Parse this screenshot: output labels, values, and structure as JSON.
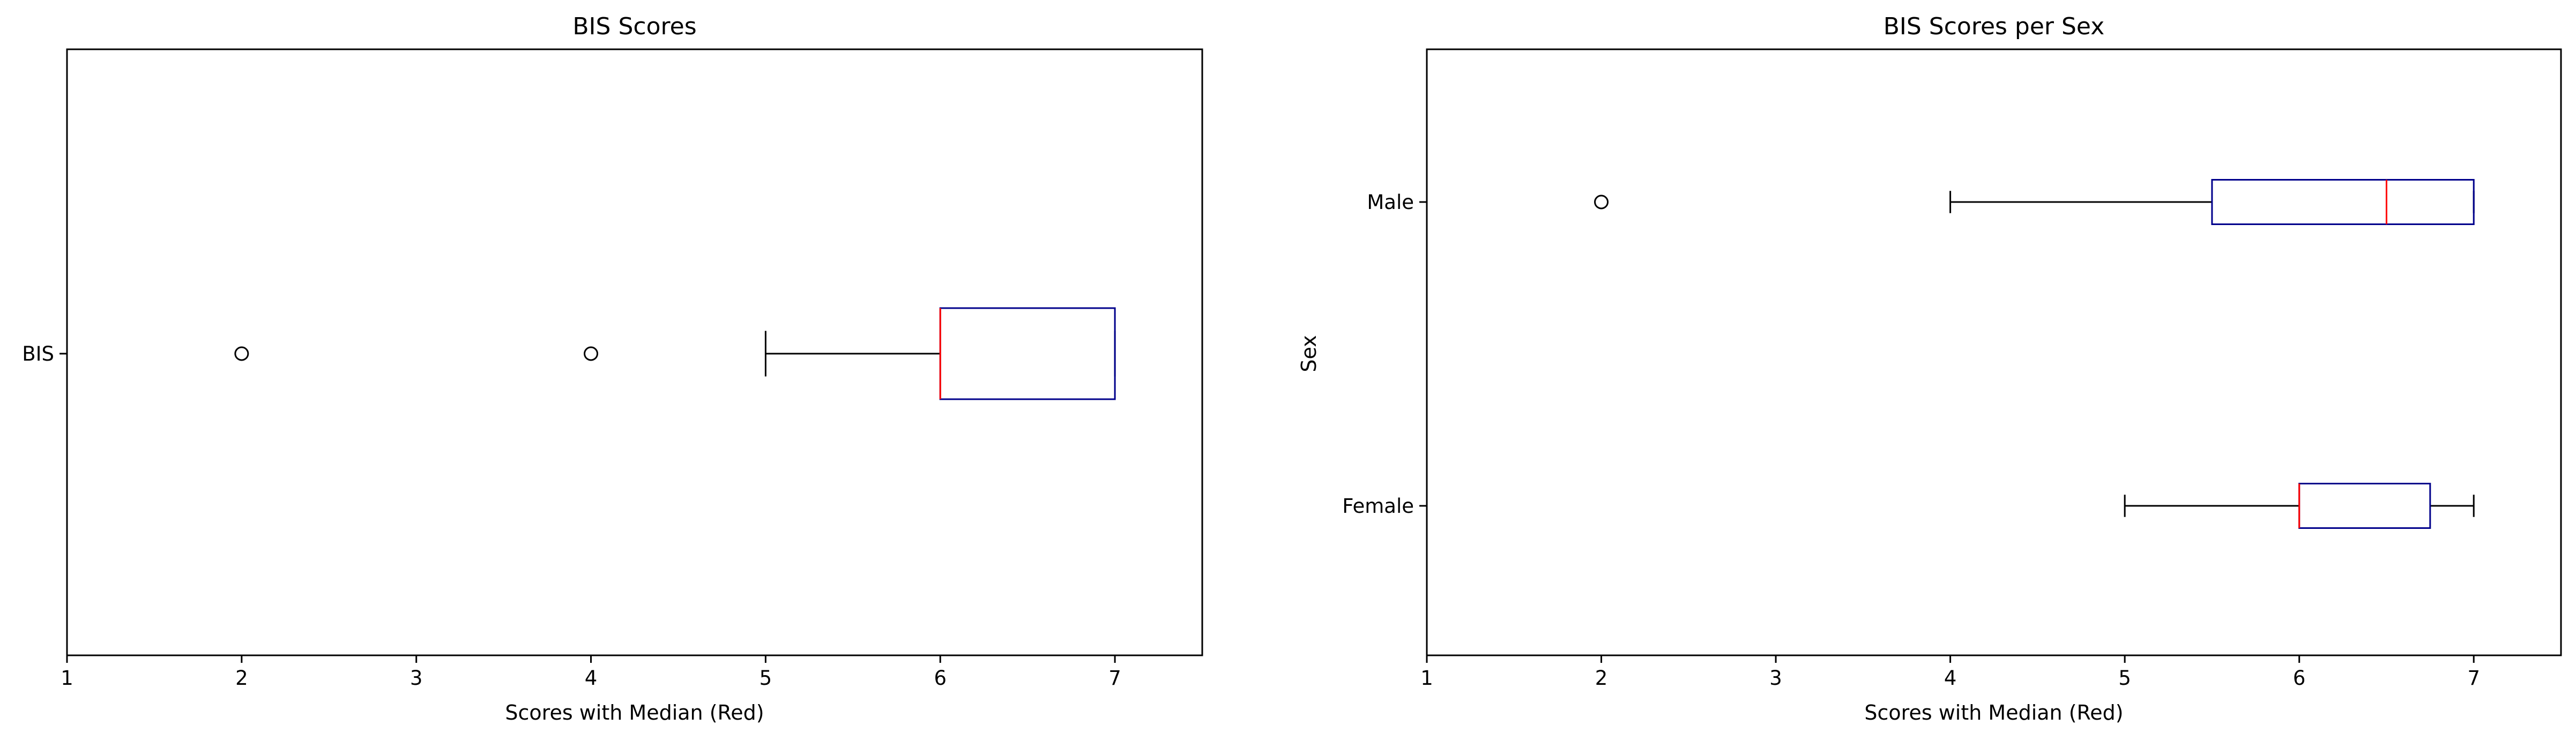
{
  "chart_data": [
    {
      "type": "boxplot",
      "orientation": "horizontal",
      "title": "BIS Scores",
      "xlabel": "Scores with Median (Red)",
      "ylabel": "",
      "xlim": [
        1,
        7.5
      ],
      "xticks": [
        1,
        2,
        3,
        4,
        5,
        6,
        7
      ],
      "xticklabels": [
        "1",
        "2",
        "3",
        "4",
        "5",
        "6",
        "7"
      ],
      "categories": [
        "BIS"
      ],
      "boxes": [
        {
          "label": "BIS",
          "whisker_low": 5,
          "q1": 6,
          "median": 6,
          "q3": 7,
          "whisker_high": 7,
          "outliers": [
            2,
            4
          ]
        }
      ],
      "colors": {
        "box": "#00008b",
        "median": "#ff0000",
        "whisker": "#000000",
        "flier": "#000000"
      }
    },
    {
      "type": "boxplot",
      "orientation": "horizontal",
      "title": "BIS Scores per Sex",
      "xlabel": "Scores with Median (Red)",
      "ylabel": "Sex",
      "xlim": [
        1,
        7.5
      ],
      "xticks": [
        1,
        2,
        3,
        4,
        5,
        6,
        7
      ],
      "xticklabels": [
        "1",
        "2",
        "3",
        "4",
        "5",
        "6",
        "7"
      ],
      "categories": [
        "Female",
        "Male"
      ],
      "boxes": [
        {
          "label": "Female",
          "whisker_low": 5,
          "q1": 6,
          "median": 6,
          "q3": 6.75,
          "whisker_high": 7,
          "outliers": []
        },
        {
          "label": "Male",
          "whisker_low": 4,
          "q1": 5.5,
          "median": 6.5,
          "q3": 7,
          "whisker_high": 7,
          "outliers": [
            2
          ]
        }
      ],
      "colors": {
        "box": "#00008b",
        "median": "#ff0000",
        "whisker": "#000000",
        "flier": "#000000"
      }
    }
  ]
}
